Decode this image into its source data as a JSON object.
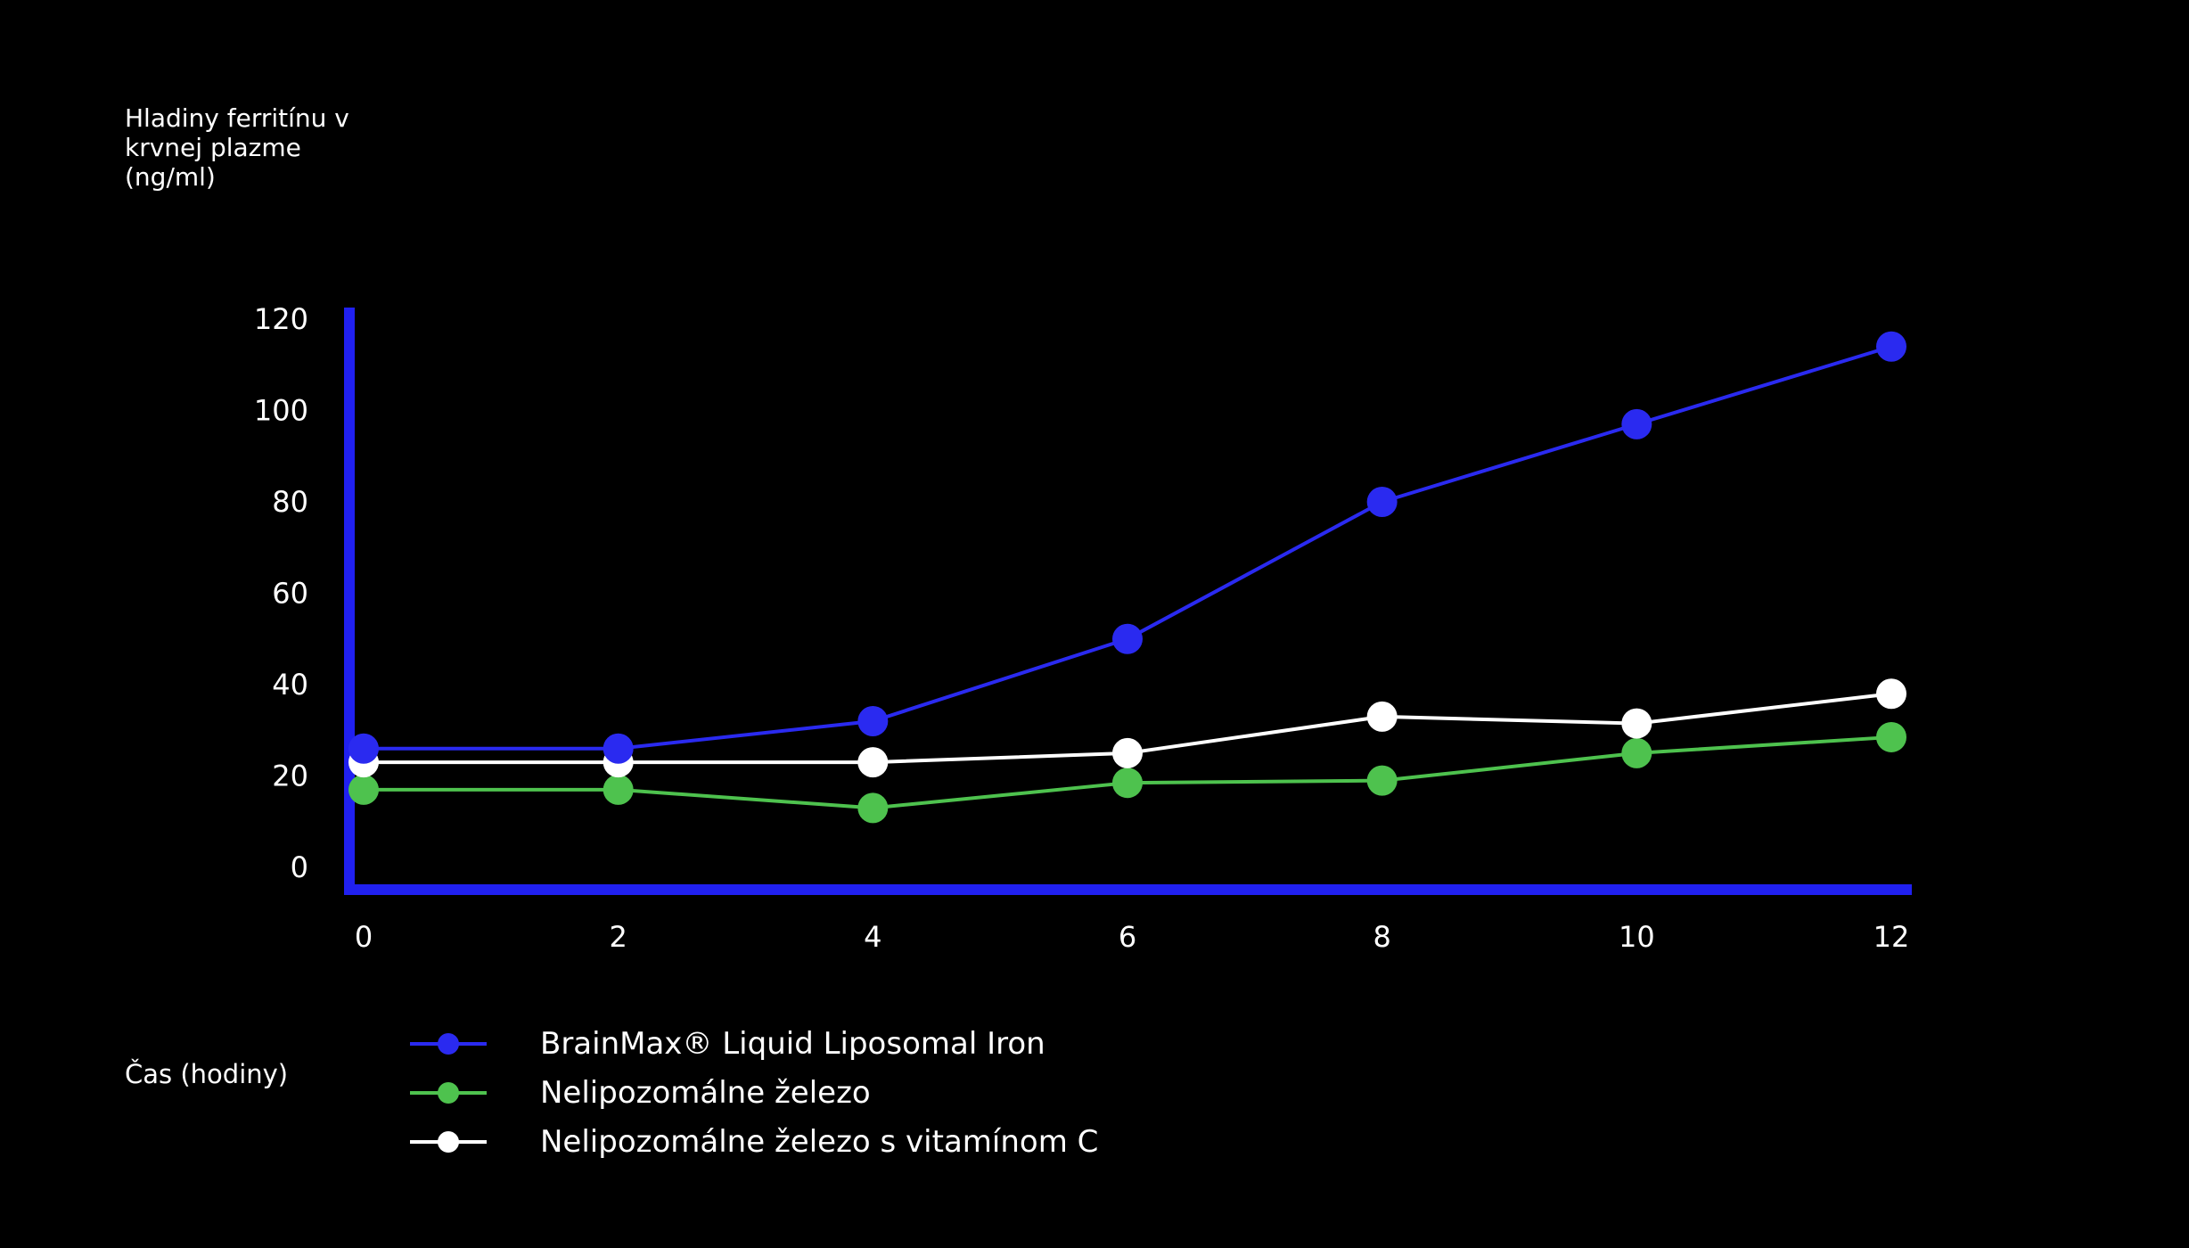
{
  "chart_data": {
    "type": "line",
    "title": "",
    "ylabel_lines": [
      "Hladiny ferritínu v",
      "krvnej plazme",
      "(ng/ml)"
    ],
    "xlabel": "Čas (hodiny)",
    "x": [
      0,
      2,
      4,
      6,
      8,
      10,
      12
    ],
    "xticks": [
      "0",
      "2",
      "4",
      "6",
      "8",
      "10",
      "12"
    ],
    "yticks": [
      "0",
      "20",
      "40",
      "60",
      "80",
      "100",
      "120"
    ],
    "ylim": [
      0,
      120
    ],
    "xlim": [
      0,
      12
    ],
    "grid": false,
    "legend_position": "bottom-left",
    "axis_color": "#2020f0",
    "series": [
      {
        "name": "BrainMax® Liquid Liposomal Iron",
        "color": "#2a2af0",
        "values": [
          26,
          26,
          32,
          50,
          80,
          97,
          114
        ]
      },
      {
        "name": "Nelipozomálne železo",
        "color": "#4ec24e",
        "values": [
          17,
          17,
          13,
          18.5,
          19,
          25,
          28.5
        ]
      },
      {
        "name": "Nelipozomálne železo s vitamínom C",
        "color": "#ffffff",
        "values": [
          23,
          23,
          23,
          25,
          33,
          31.5,
          38
        ]
      }
    ]
  }
}
